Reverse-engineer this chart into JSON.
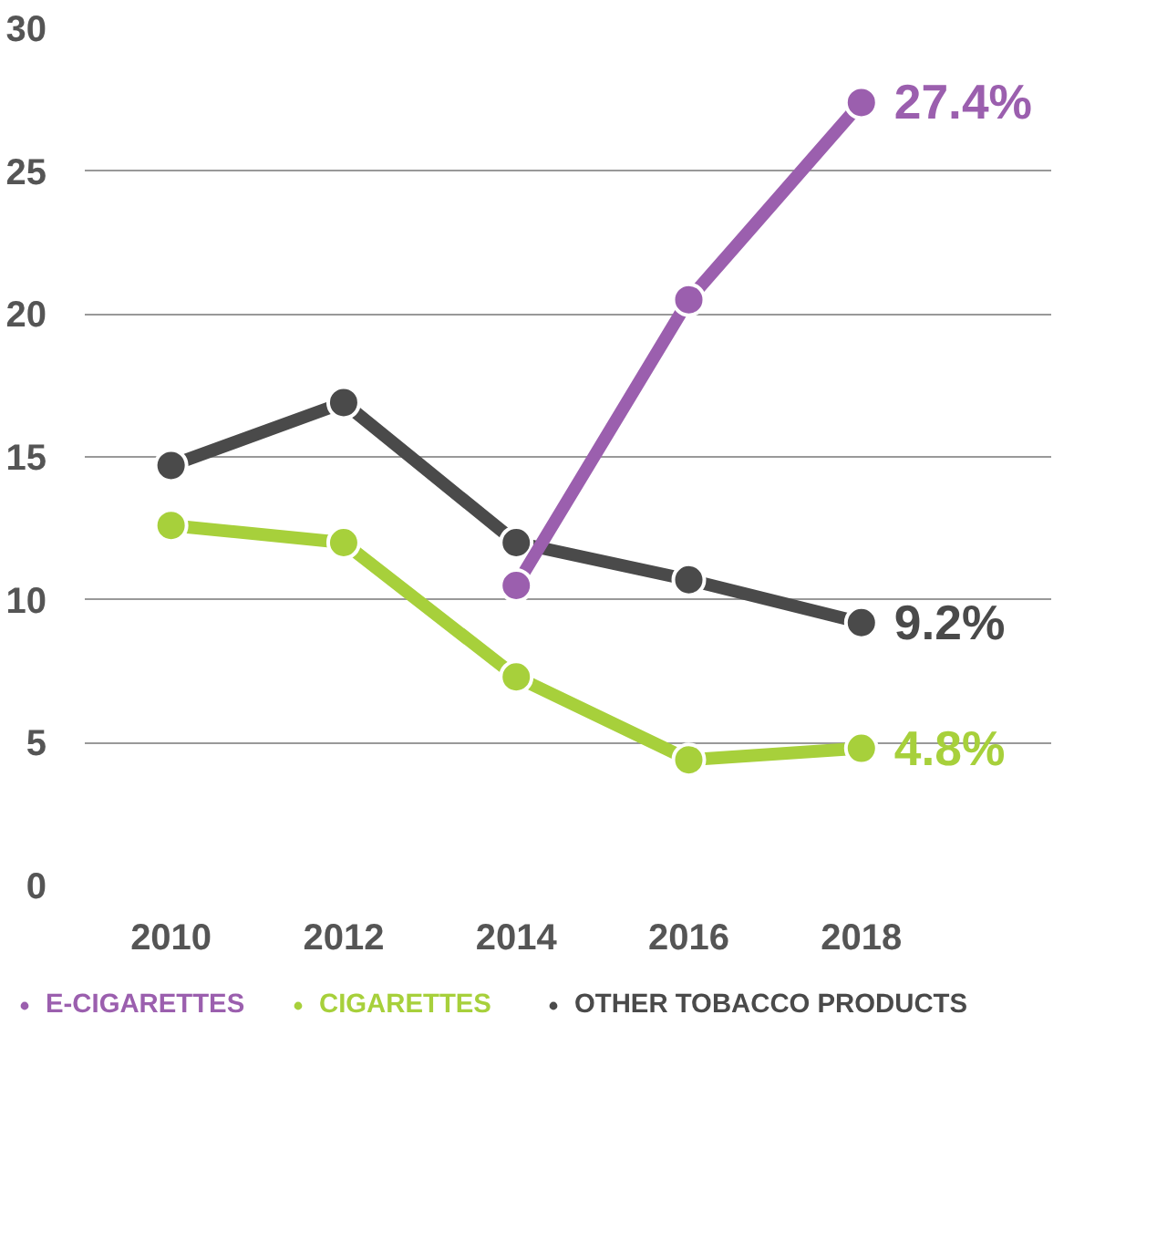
{
  "chart_data": {
    "type": "line",
    "x": [
      2010,
      2012,
      2014,
      2016,
      2018
    ],
    "series": [
      {
        "name": "E-CIGARETTES",
        "color": "#9b5fae",
        "values": [
          null,
          null,
          10.5,
          20.5,
          27.4
        ],
        "value_labels": [
          null,
          null,
          null,
          null,
          "27.4%"
        ]
      },
      {
        "name": "CIGARETTES",
        "color": "#a7d03b",
        "values": [
          12.6,
          12.0,
          7.3,
          4.4,
          4.8
        ],
        "value_labels": [
          null,
          null,
          null,
          null,
          "4.8%"
        ]
      },
      {
        "name": "OTHER TOBACCO PRODUCTS",
        "color": "#4a4a4a",
        "values": [
          14.7,
          16.9,
          12.0,
          10.7,
          9.2
        ],
        "value_labels": [
          null,
          null,
          null,
          null,
          "9.2%"
        ]
      }
    ],
    "xlim": [
      2009,
      2020.2
    ],
    "xticks": [
      2010,
      2012,
      2014,
      2016,
      2018
    ],
    "ylim": [
      0,
      30
    ],
    "yticks": [
      0,
      5,
      10,
      15,
      20,
      25,
      30
    ],
    "grid": "y",
    "legend": "bottom",
    "marker": "circle",
    "line_style": "solid"
  }
}
